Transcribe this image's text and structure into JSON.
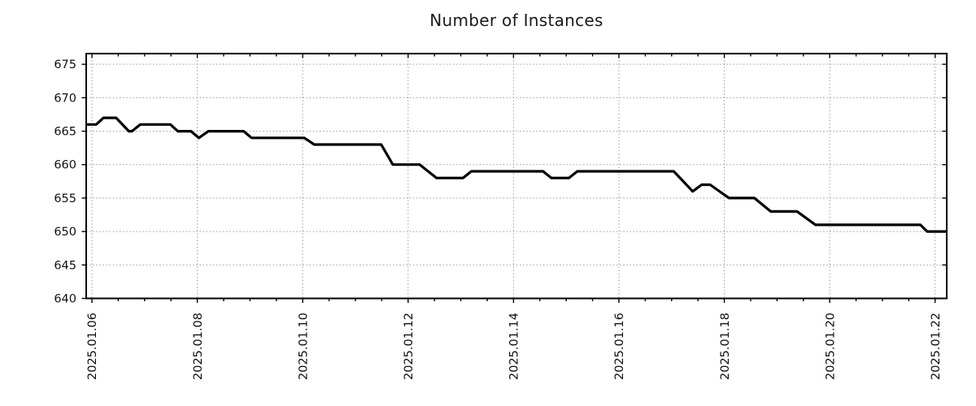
{
  "chart_data": {
    "type": "line",
    "title": "Number of Instances",
    "xlabel": "",
    "ylabel": "",
    "x_unit": "days since 2025-01-06 00:00 (fractional, estimated from pixel positions)",
    "xlim": [
      -0.108,
      16.22
    ],
    "ylim": [
      640,
      676.6
    ],
    "x_ticks": [
      {
        "d": 0,
        "label": "2025.01.06"
      },
      {
        "d": 2,
        "label": "2025.01.08"
      },
      {
        "d": 4,
        "label": "2025.01.10"
      },
      {
        "d": 6,
        "label": "2025.01.12"
      },
      {
        "d": 8,
        "label": "2025.01.14"
      },
      {
        "d": 10,
        "label": "2025.01.16"
      },
      {
        "d": 12,
        "label": "2025.01.18"
      },
      {
        "d": 14,
        "label": "2025.01.20"
      },
      {
        "d": 16,
        "label": "2025.01.22"
      }
    ],
    "x_minor_tick_interval": 0.5,
    "y_ticks": [
      640,
      645,
      650,
      655,
      660,
      665,
      670,
      675
    ],
    "grid": "dotted-both-axes-major-only",
    "legend_position": "none",
    "x_tick_label_rotation_deg": 90,
    "series": [
      {
        "name": "instances",
        "color": "#000000",
        "line_width": 3.2,
        "points": [
          [
            -0.108,
            666
          ],
          [
            0.08,
            666
          ],
          [
            0.22,
            667
          ],
          [
            0.46,
            667
          ],
          [
            0.7,
            665
          ],
          [
            0.76,
            665
          ],
          [
            0.92,
            666
          ],
          [
            1.49,
            666
          ],
          [
            1.63,
            665
          ],
          [
            1.88,
            665
          ],
          [
            2.03,
            664
          ],
          [
            2.21,
            665
          ],
          [
            2.88,
            665
          ],
          [
            3.03,
            664
          ],
          [
            4.03,
            664
          ],
          [
            4.22,
            663
          ],
          [
            5.49,
            663
          ],
          [
            5.71,
            660
          ],
          [
            6.22,
            660
          ],
          [
            6.54,
            658
          ],
          [
            7.04,
            658
          ],
          [
            7.2,
            659
          ],
          [
            8.56,
            659
          ],
          [
            8.72,
            658
          ],
          [
            9.05,
            658
          ],
          [
            9.21,
            659
          ],
          [
            11.04,
            659
          ],
          [
            11.4,
            656
          ],
          [
            11.57,
            657
          ],
          [
            11.73,
            657
          ],
          [
            12.09,
            655
          ],
          [
            12.57,
            655
          ],
          [
            12.88,
            653
          ],
          [
            13.38,
            653
          ],
          [
            13.73,
            651
          ],
          [
            15.72,
            651
          ],
          [
            15.85,
            650
          ],
          [
            16.22,
            650
          ]
        ]
      }
    ]
  },
  "colors": {
    "background": "#ffffff",
    "grid": "#9b9b9b",
    "spine": "#000000",
    "tick": "#000000",
    "text": "#111111",
    "line": "#000000"
  }
}
